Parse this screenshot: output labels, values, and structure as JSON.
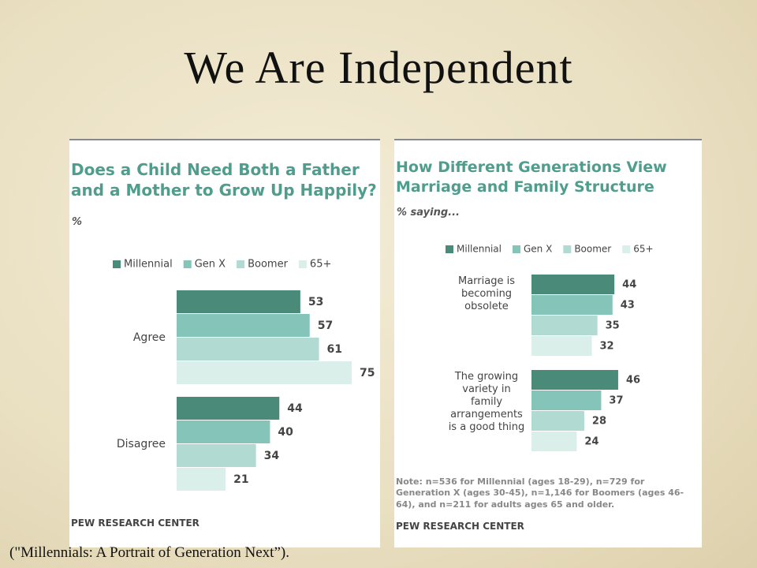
{
  "slide_title": "We Are Independent",
  "caption": "(\"Millennials: A Portrait of Generation Next”).",
  "chart_data": [
    {
      "type": "bar",
      "orientation": "horizontal",
      "title": "Does a Child Need Both a Father and a Mother to Grow Up Happily?",
      "subtitle": "%",
      "categories": [
        "Agree",
        "Disagree"
      ],
      "series": [
        {
          "name": "Millennial",
          "color": "#4a8a78",
          "values": [
            53,
            44
          ]
        },
        {
          "name": "Gen X",
          "color": "#85c4b8",
          "values": [
            57,
            40
          ]
        },
        {
          "name": "Boomer",
          "color": "#b0dad2",
          "values": [
            61,
            34
          ]
        },
        {
          "name": "65+",
          "color": "#daeeea",
          "values": [
            75,
            21
          ]
        }
      ],
      "source": "PEW RESEARCH CENTER"
    },
    {
      "type": "bar",
      "orientation": "horizontal",
      "title": "How Different Generations View Marriage and Family Structure",
      "subtitle": "% saying...",
      "categories": [
        "Marriage is\nbecoming\nobsolete",
        "The growing\nvariety in\nfamily\narrangements\nis a good thing"
      ],
      "series": [
        {
          "name": "Millennial",
          "color": "#4a8a78",
          "values": [
            44,
            46
          ]
        },
        {
          "name": "Gen X",
          "color": "#85c4b8",
          "values": [
            43,
            37
          ]
        },
        {
          "name": "Boomer",
          "color": "#b0dad2",
          "values": [
            35,
            28
          ]
        },
        {
          "name": "65+",
          "color": "#daeeea",
          "values": [
            32,
            24
          ]
        }
      ],
      "note": "Note: n=536 for Millennial (ages 18-29), n=729 for Generation X (ages 30-45), n=1,146 for Boomers (ages 46-64), and n=211 for adults ages 65 and older.",
      "source": "PEW RESEARCH CENTER"
    }
  ]
}
